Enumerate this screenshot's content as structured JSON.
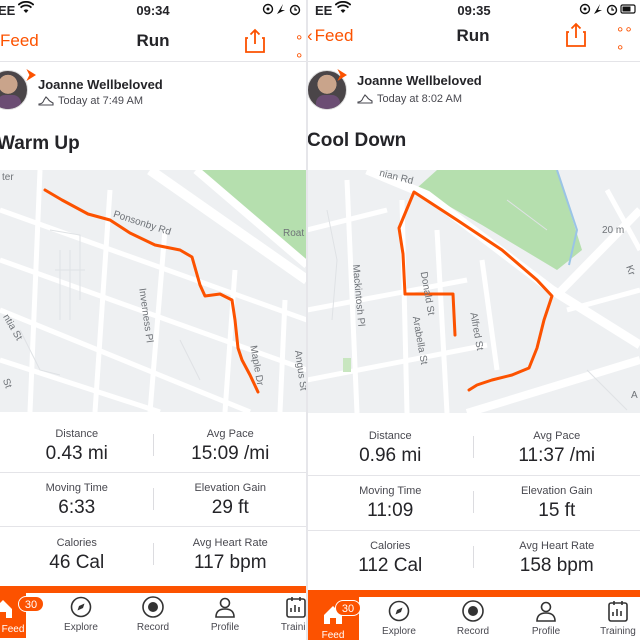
{
  "screens": [
    {
      "status": {
        "carrier": "EE",
        "time": "09:34"
      },
      "nav": {
        "back_label": "Feed",
        "title": "Run"
      },
      "athlete": {
        "name": "Joanne Wellbeloved",
        "time": "Today at 7:49 AM"
      },
      "activity_title": "Warm Up",
      "map_labels": [
        "Ponsonby Rd",
        "Inverness Pl",
        "Angus St",
        "ntia St",
        "Roat",
        "ter",
        "Maple Dr",
        "St"
      ],
      "stats": [
        {
          "label": "Distance",
          "value": "0.43 mi"
        },
        {
          "label": "Avg Pace",
          "value": "15:09 /mi"
        },
        {
          "label": "Moving Time",
          "value": "6:33"
        },
        {
          "label": "Elevation Gain",
          "value": "29 ft"
        },
        {
          "label": "Calories",
          "value": "46 Cal"
        },
        {
          "label": "Avg Heart Rate",
          "value": "117 bpm"
        }
      ],
      "tabs": [
        {
          "label": "Feed",
          "icon": "home-icon"
        },
        {
          "label": "Explore",
          "icon": "compass-icon"
        },
        {
          "label": "Record",
          "icon": "record-icon"
        },
        {
          "label": "Profile",
          "icon": "profile-icon"
        },
        {
          "label": "Trainin",
          "icon": "training-icon"
        }
      ],
      "badge": "30"
    },
    {
      "status": {
        "carrier": "EE",
        "time": "09:35"
      },
      "nav": {
        "back_label": "Feed",
        "title": "Run"
      },
      "athlete": {
        "name": "Joanne Wellbeloved",
        "time": "Today at 8:02 AM"
      },
      "activity_title": "Cool Down",
      "map_labels": [
        "nian Rd",
        "Mackintosh Pl",
        "Donald St",
        "Arabella St",
        "Alfred St",
        "20 m",
        "Kr",
        "A"
      ],
      "stats": [
        {
          "label": "Distance",
          "value": "0.96 mi"
        },
        {
          "label": "Avg Pace",
          "value": "11:37 /mi"
        },
        {
          "label": "Moving Time",
          "value": "11:09"
        },
        {
          "label": "Elevation Gain",
          "value": "15 ft"
        },
        {
          "label": "Calories",
          "value": "112 Cal"
        },
        {
          "label": "Avg Heart Rate",
          "value": "158 bpm"
        }
      ],
      "tabs": [
        {
          "label": "Feed",
          "icon": "home-icon"
        },
        {
          "label": "Explore",
          "icon": "compass-icon"
        },
        {
          "label": "Record",
          "icon": "record-icon"
        },
        {
          "label": "Profile",
          "icon": "profile-icon"
        },
        {
          "label": "Training",
          "icon": "training-icon"
        }
      ],
      "badge": "30"
    }
  ],
  "colors": {
    "accent": "#fc5200",
    "route": "#fc5200",
    "park": "#b5dfae",
    "text": "#242428"
  }
}
